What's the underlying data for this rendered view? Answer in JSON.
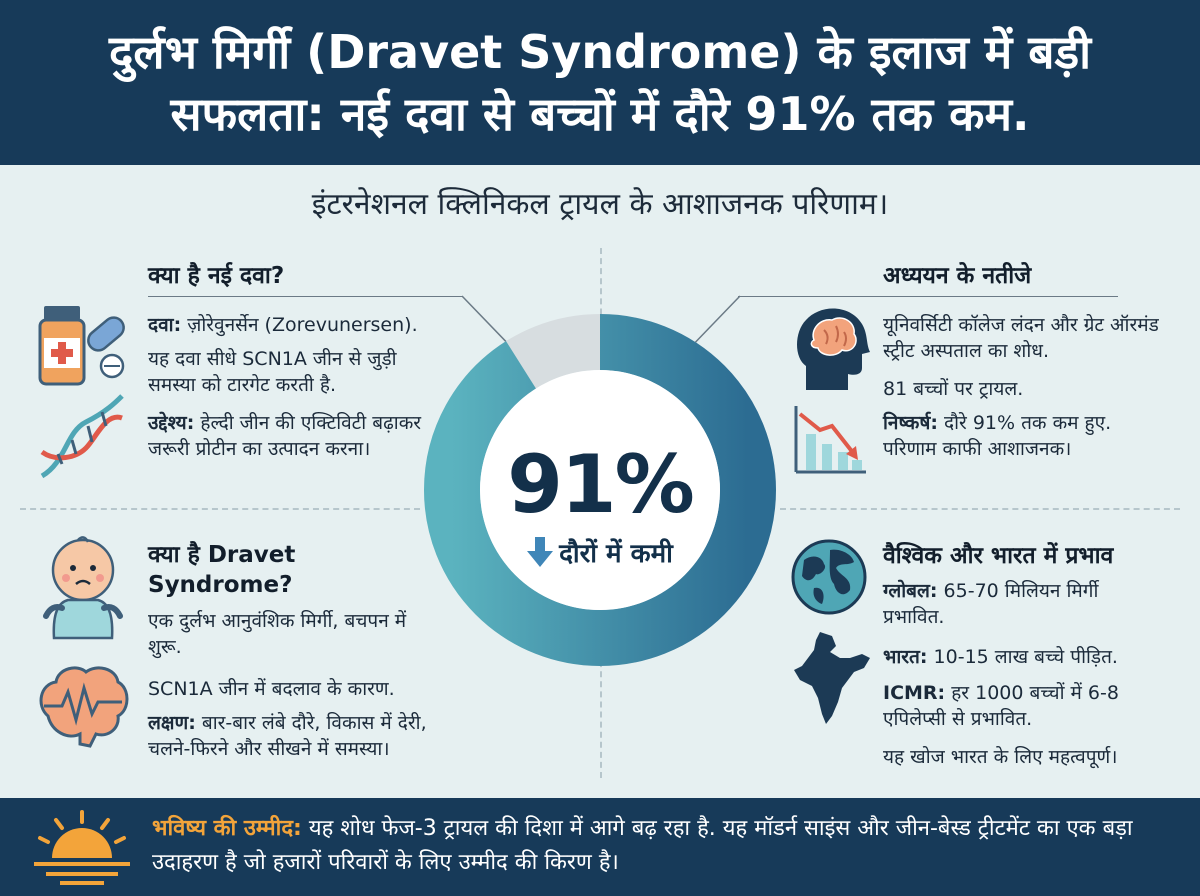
{
  "header": {
    "title_line1": "दुर्लभ मिर्गी (Dravet Syndrome) के इलाज में बड़ी",
    "title_line2": "सफलता: नई दवा से बच्चों में दौरे 91% तक कम."
  },
  "subtitle": "इंटरनेशनल क्लिनिकल ट्रायल के आशाजनक परिणाम।",
  "drug": {
    "title": "क्या है नई दवा?",
    "name_label": "दवा:",
    "name_text": "ज़ोरेवुनर्सेन (Zorevunersen).",
    "desc": "यह दवा सीधे SCN1A जीन से जुड़ी समस्या को टारगेट करती है.",
    "purpose_label": "उद्देश्य:",
    "purpose_text": "हेल्दी जीन की एक्टिविटी बढ़ाकर जरूरी प्रोटीन का उत्पादन करना।"
  },
  "dravet": {
    "title_line1": "क्या है Dravet",
    "title_line2": "Syndrome?",
    "desc1": "एक दुर्लभ आनुवंशिक मिर्गी, बचपन में शुरू.",
    "desc2": "SCN1A जीन में बदलाव के कारण.",
    "symptoms_label": "लक्षण:",
    "symptoms_text": "बार-बार लंबे दौरे, विकास में देरी, चलने-फिरने और सीखने में समस्या।"
  },
  "results": {
    "title": "अध्ययन के नतीजे",
    "desc1": "यूनिवर्सिटी कॉलेज लंदन और ग्रेट ऑरमंड स्ट्रीट अस्पताल का शोध.",
    "desc2": "81 बच्चों पर ट्रायल.",
    "conclusion_label": "निष्कर्ष:",
    "conclusion_text": "दौरे 91% तक कम हुए. परिणाम काफी आशाजनक।"
  },
  "impact": {
    "title": "वैश्विक और भारत में प्रभाव",
    "global_label": "ग्लोबल:",
    "global_text": "65-70 मिलियन मिर्गी प्रभावित.",
    "india_label": "भारत:",
    "india_text": "10-15 लाख बच्चे पीड़ित.",
    "icmr_label": "ICMR:",
    "icmr_text": "हर 1000 बच्चों में 6-8 एपिलेप्सी से प्रभावित.",
    "note": "यह खोज भारत के लिए महत्वपूर्ण।"
  },
  "center": {
    "percent": "91%",
    "label": "दौरों में कमी",
    "reduction_fraction": 0.91
  },
  "footer": {
    "label": "भविष्य की उम्मीद:",
    "text": "यह शोध फेज-3 ट्रायल की दिशा में आगे बढ़ रहा है. यह मॉडर्न साइंस और जीन-बेस्ड ट्रीटमेंट का एक बड़ा उदाहरण है जो हजारों परिवारों के लिए उम्मीद की किरण है।"
  },
  "icons": [
    "medicine-bottle-icon",
    "pill-icon",
    "dna-icon",
    "baby-icon",
    "brain-wave-icon",
    "head-brain-icon",
    "declining-chart-icon",
    "globe-icon",
    "india-map-icon",
    "sunrise-icon",
    "down-arrow-icon"
  ],
  "colors": {
    "navy": "#173a59",
    "teal": "#4fa6b5",
    "orange": "#f3a43a",
    "background": "#e6f0f1"
  }
}
